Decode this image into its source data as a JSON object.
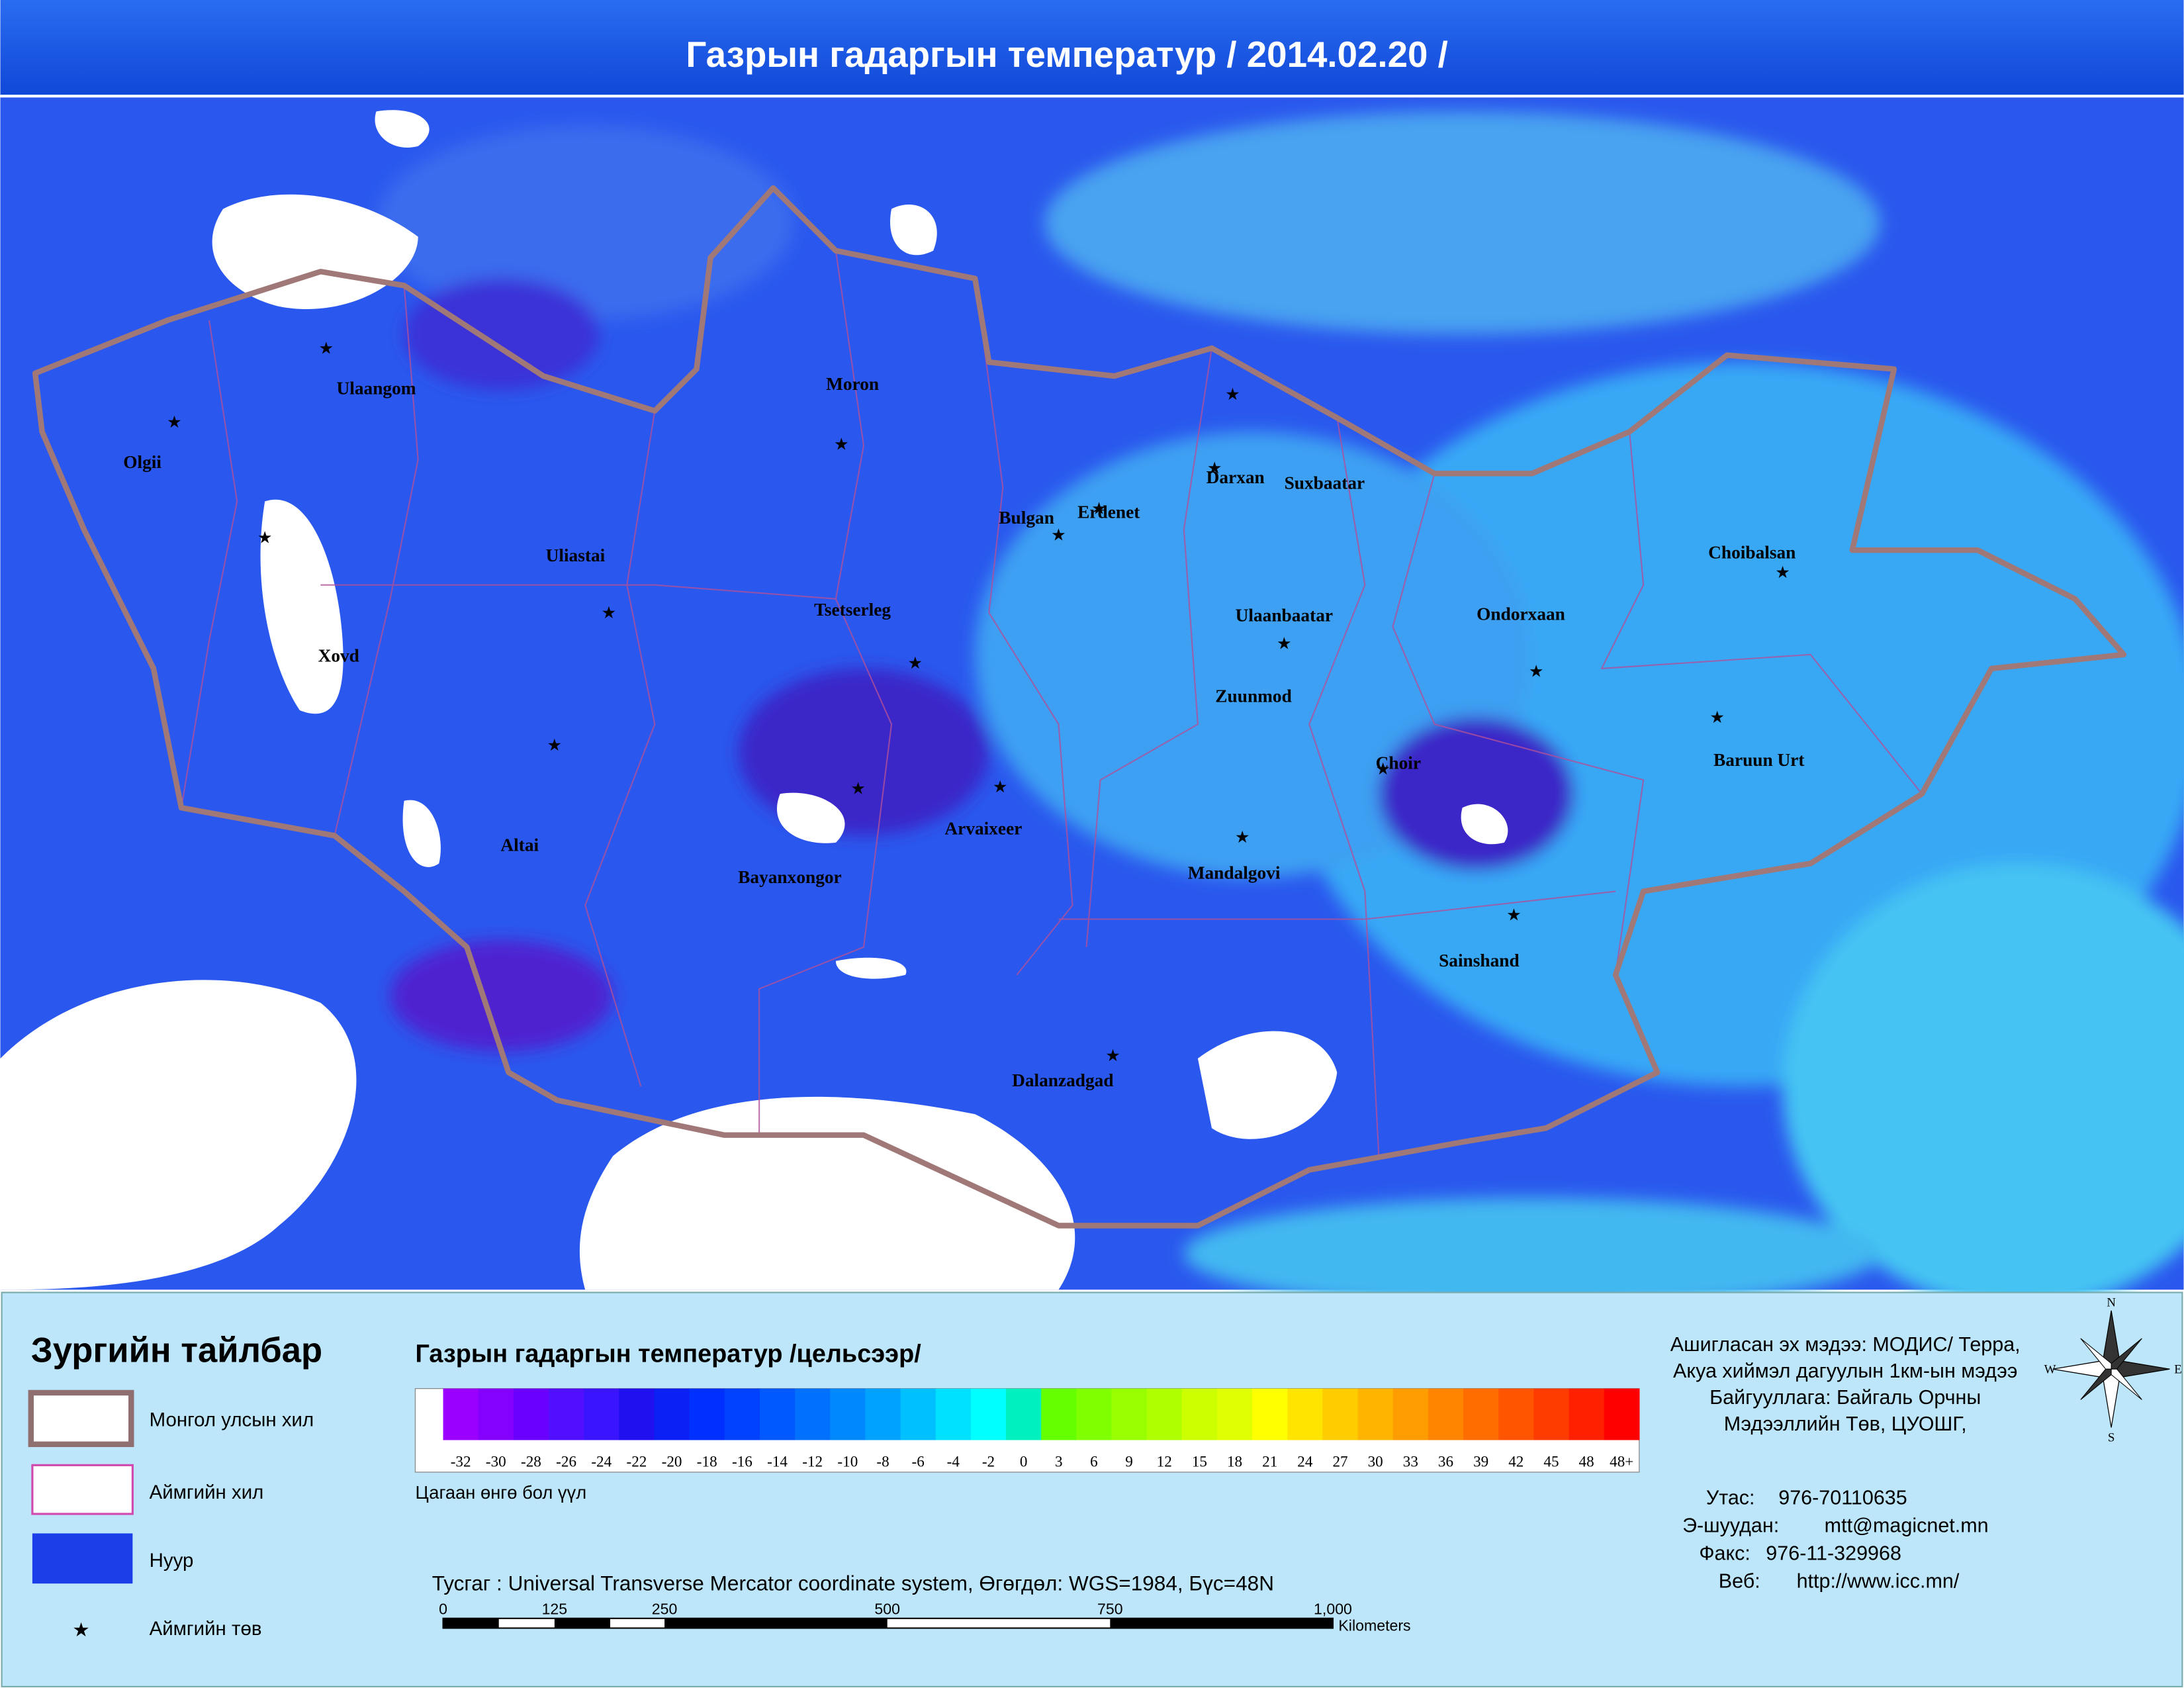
{
  "header": {
    "title": "Газрын гадаргын температур / 2014.02.20  /"
  },
  "cities": [
    "Ulaangom",
    "Olgii",
    "Moron",
    "Darxan",
    "Suxbaatar",
    "Bulgan",
    "Erdenet",
    "Uliastai",
    "Choibalsan",
    "Tsetserleg",
    "Ulaanbaatar",
    "Ondorxaan",
    "Xovd",
    "Zuunmod",
    "Baruun Urt",
    "Choir",
    "Altai",
    "Arvaixeer",
    "Bayanxongor",
    "Mandalgovi",
    "Sainshand",
    "Dalanzadgad"
  ],
  "legend": {
    "title": "Зургийн тайлбар",
    "items": [
      "Монгол улсын хил",
      "Аймгийн хил",
      "Нуур",
      "Аймгийн төв"
    ],
    "colorbar": {
      "title": "Газрын гадаргын температур /цельсээр/",
      "labels": [
        "-32",
        "-30",
        "-28",
        "-26",
        "-24",
        "-22",
        "-20",
        "-18",
        "-16",
        "-14",
        "-12",
        "-10",
        "-8",
        "-6",
        "-4",
        "-2",
        "0",
        "3",
        "6",
        "9",
        "12",
        "15",
        "18",
        "21",
        "24",
        "27",
        "30",
        "33",
        "36",
        "39",
        "42",
        "45",
        "48",
        "48+"
      ],
      "colors": [
        "#9a00ff",
        "#8400ff",
        "#6a00ff",
        "#5010ff",
        "#3a14ff",
        "#2010f0",
        "#0a20f5",
        "#0030ff",
        "#0042ff",
        "#0058ff",
        "#0070ff",
        "#0088ff",
        "#00a2ff",
        "#00c0ff",
        "#00e0ff",
        "#00ffff",
        "#00f0c0",
        "#66ff00",
        "#80ff00",
        "#99ff00",
        "#b0ff00",
        "#ccff00",
        "#e0ff00",
        "#ffff00",
        "#ffe400",
        "#ffcc00",
        "#ffb400",
        "#ff9c00",
        "#ff8400",
        "#ff6c00",
        "#ff5400",
        "#ff3c00",
        "#ff2000",
        "#ff0000"
      ],
      "note": "Цагаан өнгө бол үүл"
    },
    "projection": "Тусгаг : Universal Transverse Mercator coordinate system, Өгөгдөл: WGS=1984, Бүс=48N",
    "scale": {
      "labels": [
        "0",
        "125",
        "250",
        "500",
        "750",
        "1,000"
      ],
      "unit": "Kilometers"
    }
  },
  "info": {
    "source": [
      "Ашигласан эх мэдээ: МОДИС/ Терра,",
      "Акуа хиймэл дагуулын 1км-ын мэдээ",
      "Байгууллага: Байгаль Орчны",
      "Мэдээллийн Төв, ЦУОШГ,"
    ],
    "contacts": [
      {
        "label": "Утас:",
        "value": "976-70110635"
      },
      {
        "label": "Э-шуудан:",
        "value": "mtt@magicnet.mn"
      },
      {
        "label": "Факс:",
        "value": "976-11-329968"
      },
      {
        "label": "Веб:",
        "value": "http://www.icc.mn/"
      }
    ]
  },
  "compass": {
    "n": "N",
    "e": "E",
    "s": "S",
    "w": "W"
  }
}
